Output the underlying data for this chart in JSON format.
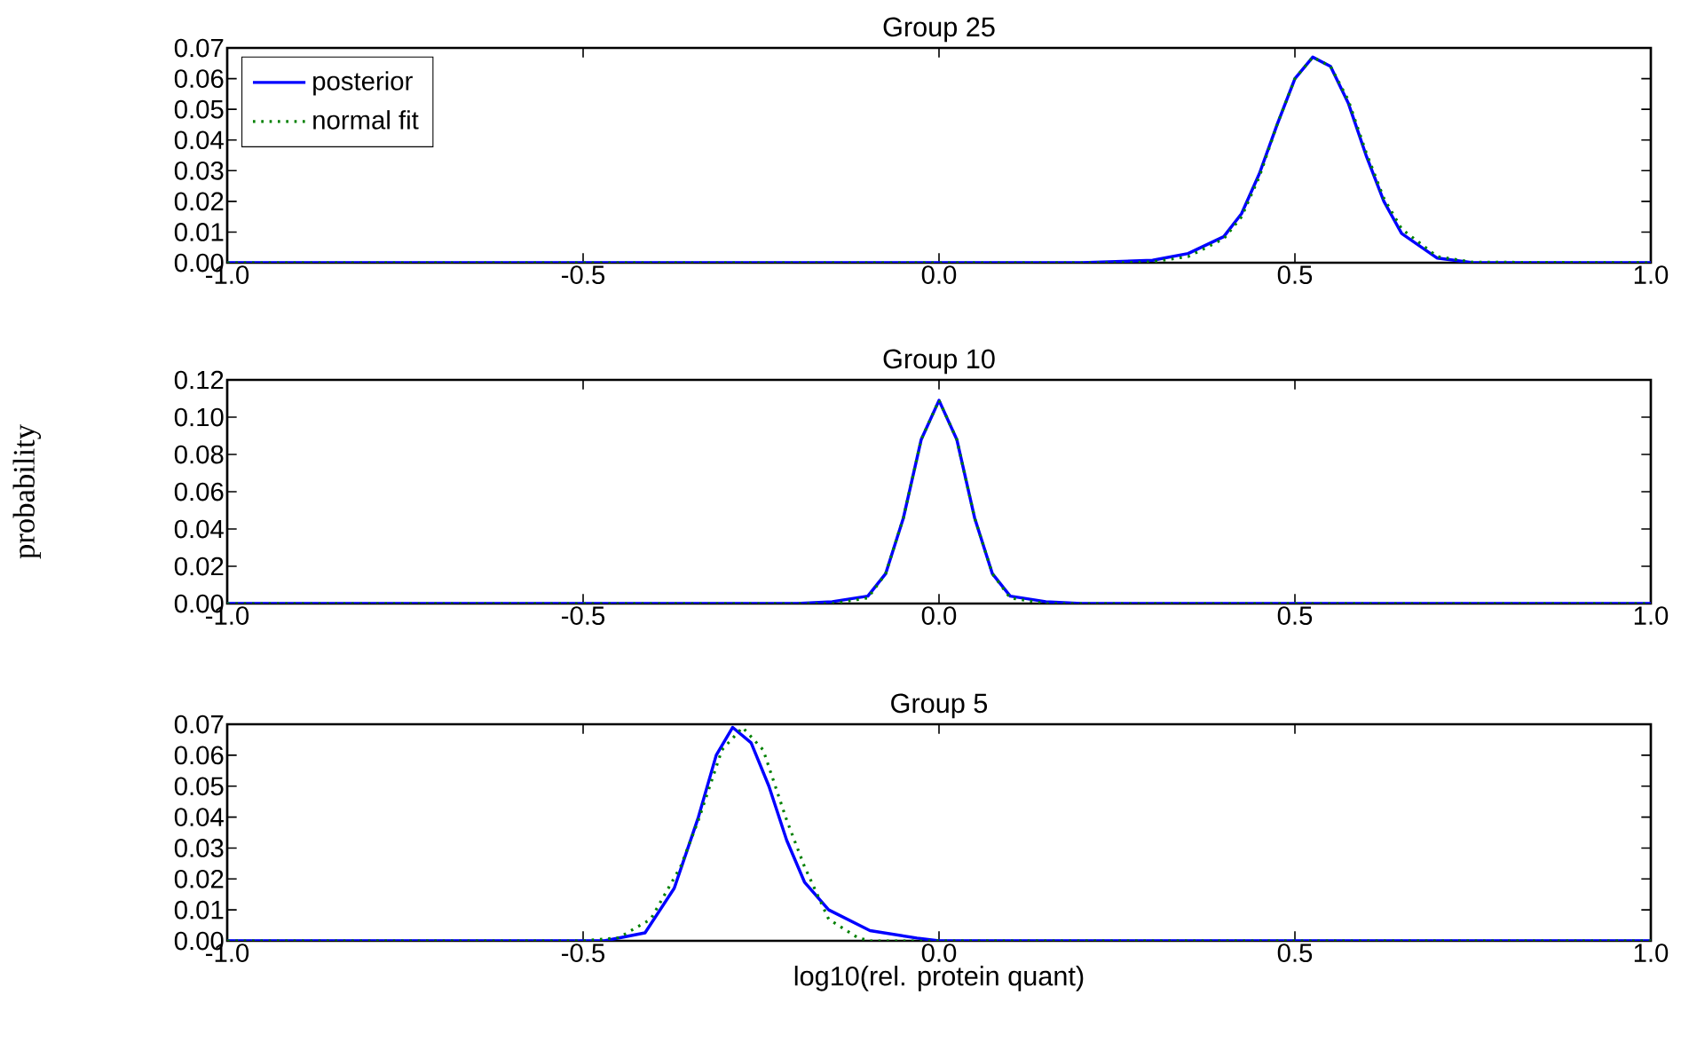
{
  "chart_data": [
    {
      "type": "line",
      "title": "Group 25",
      "legend": "top left",
      "marker": "none",
      "xlim": [
        -1,
        1
      ],
      "ylim": [
        0,
        0.07
      ],
      "xticks": [
        {
          "value": -1,
          "label": "-1.0"
        },
        {
          "value": -0.5,
          "label": "-0.5"
        },
        {
          "value": 0,
          "label": "0.0"
        },
        {
          "value": 0.5,
          "label": "0.5"
        },
        {
          "value": 1,
          "label": "1.0"
        }
      ],
      "yticks": [
        {
          "value": 0,
          "label": "0.00"
        },
        {
          "value": 0.01,
          "label": "0.01"
        },
        {
          "value": 0.02,
          "label": "0.02"
        },
        {
          "value": 0.03,
          "label": "0.03"
        },
        {
          "value": 0.04,
          "label": "0.04"
        },
        {
          "value": 0.05,
          "label": "0.05"
        },
        {
          "value": 0.06,
          "label": "0.06"
        },
        {
          "value": 0.07,
          "label": "0.07"
        }
      ],
      "series": [
        {
          "name": "posterior",
          "color": "#0000ff",
          "line_style": "solid",
          "x": [
            -1,
            0.2,
            0.3,
            0.35,
            0.4,
            0.425,
            0.45,
            0.475,
            0.5,
            0.525,
            0.55,
            0.575,
            0.6,
            0.625,
            0.65,
            0.7,
            0.75,
            1
          ],
          "values": [
            0,
            0,
            0.0008,
            0.003,
            0.0085,
            0.016,
            0.029,
            0.045,
            0.06,
            0.067,
            0.064,
            0.052,
            0.035,
            0.02,
            0.0095,
            0.0015,
            0,
            0
          ]
        },
        {
          "name": "normal fit",
          "color": "#008000",
          "line_style": "dotted",
          "x": [
            -1,
            0.25,
            0.3,
            0.35,
            0.4,
            0.425,
            0.45,
            0.475,
            0.5,
            0.525,
            0.55,
            0.575,
            0.6,
            0.625,
            0.65,
            0.7,
            0.75,
            1
          ],
          "values": [
            0,
            0,
            0.0003,
            0.002,
            0.0078,
            0.015,
            0.028,
            0.045,
            0.06,
            0.067,
            0.064,
            0.053,
            0.036,
            0.021,
            0.011,
            0.002,
            0.0002,
            0
          ]
        }
      ]
    },
    {
      "type": "line",
      "title": "Group 10",
      "ylabel": "probability",
      "marker": "none",
      "xlim": [
        -1,
        1
      ],
      "ylim": [
        0,
        0.12
      ],
      "xticks": [
        {
          "value": -1,
          "label": "-1.0"
        },
        {
          "value": -0.5,
          "label": "-0.5"
        },
        {
          "value": 0,
          "label": "0.0"
        },
        {
          "value": 0.5,
          "label": "0.5"
        },
        {
          "value": 1,
          "label": "1.0"
        }
      ],
      "yticks": [
        {
          "value": 0,
          "label": "0.00"
        },
        {
          "value": 0.02,
          "label": "0.02"
        },
        {
          "value": 0.04,
          "label": "0.04"
        },
        {
          "value": 0.06,
          "label": "0.06"
        },
        {
          "value": 0.08,
          "label": "0.08"
        },
        {
          "value": 0.1,
          "label": "0.10"
        },
        {
          "value": 0.12,
          "label": "0.12"
        }
      ],
      "series": [
        {
          "color": "#0000ff",
          "line_style": "solid",
          "x": [
            -1,
            -0.2,
            -0.15,
            -0.1,
            -0.075,
            -0.05,
            -0.025,
            0,
            0.025,
            0.05,
            0.075,
            0.1,
            0.15,
            0.2,
            1
          ],
          "values": [
            0,
            0,
            0.001,
            0.004,
            0.016,
            0.046,
            0.088,
            0.109,
            0.088,
            0.046,
            0.016,
            0.004,
            0.001,
            0,
            0
          ]
        },
        {
          "color": "#008000",
          "line_style": "dotted",
          "x": [
            -1,
            -0.15,
            -0.1,
            -0.075,
            -0.05,
            -0.025,
            0,
            0.025,
            0.05,
            0.075,
            0.1,
            0.15,
            1
          ],
          "values": [
            0,
            0,
            0.003,
            0.016,
            0.046,
            0.088,
            0.109,
            0.088,
            0.046,
            0.016,
            0.003,
            0,
            0
          ]
        }
      ]
    },
    {
      "type": "line",
      "title": "Group 5",
      "xlabel": "log10(rel. protein quant)",
      "marker": "none",
      "xlim": [
        -1,
        1
      ],
      "ylim": [
        0,
        0.07
      ],
      "xticks": [
        {
          "value": -1,
          "label": "-1.0"
        },
        {
          "value": -0.5,
          "label": "-0.5"
        },
        {
          "value": 0,
          "label": "0.0"
        },
        {
          "value": 0.5,
          "label": "0.5"
        },
        {
          "value": 1,
          "label": "1.0"
        }
      ],
      "yticks": [
        {
          "value": 0,
          "label": "0.00"
        },
        {
          "value": 0.01,
          "label": "0.01"
        },
        {
          "value": 0.02,
          "label": "0.02"
        },
        {
          "value": 0.03,
          "label": "0.03"
        },
        {
          "value": 0.04,
          "label": "0.04"
        },
        {
          "value": 0.05,
          "label": "0.05"
        },
        {
          "value": 0.06,
          "label": "0.06"
        },
        {
          "value": 0.07,
          "label": "0.07"
        }
      ],
      "series": [
        {
          "color": "#0000ff",
          "line_style": "solid",
          "x": [
            -1,
            -0.47,
            -0.413,
            -0.372,
            -0.338,
            -0.313,
            -0.29,
            -0.264,
            -0.239,
            -0.214,
            -0.189,
            -0.155,
            -0.097,
            -0.031,
            0,
            1
          ],
          "values": [
            0,
            0,
            0.0026,
            0.017,
            0.04,
            0.06,
            0.069,
            0.064,
            0.05,
            0.0325,
            0.019,
            0.01,
            0.0033,
            0.0009,
            0,
            0
          ]
        },
        {
          "color": "#008000",
          "line_style": "dotted",
          "x": [
            -1,
            -0.5,
            -0.45,
            -0.405,
            -0.363,
            -0.338,
            -0.305,
            -0.276,
            -0.247,
            -0.214,
            -0.189,
            -0.155,
            -0.114,
            -0.097,
            1
          ],
          "values": [
            0,
            0,
            0.001,
            0.007,
            0.024,
            0.039,
            0.0617,
            0.069,
            0.0617,
            0.039,
            0.024,
            0.007,
            0.001,
            0,
            0
          ]
        }
      ]
    }
  ]
}
